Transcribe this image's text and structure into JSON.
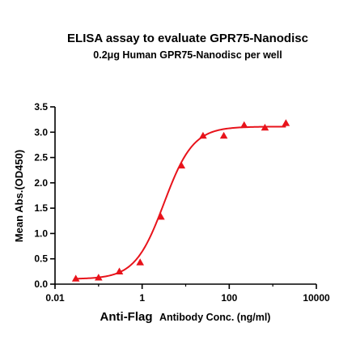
{
  "chart_data": {
    "type": "scatter",
    "title": "ELISA assay to evaluate GPR75-Nanodisc",
    "subtitle": "0.2μg Human GPR75-Nanodisc per well",
    "xlabel_main": "Anti-Flag",
    "xlabel_sub": "Antibody Conc. (ng/ml)",
    "ylabel": "Mean Abs.(OD450)",
    "x_scale": "log",
    "xlim": [
      0.01,
      10000
    ],
    "ylim": [
      0,
      3.5
    ],
    "x_ticks": [
      {
        "value": 0.01,
        "label": "0.01"
      },
      {
        "value": 1,
        "label": "1"
      },
      {
        "value": 100,
        "label": "100"
      },
      {
        "value": 10000,
        "label": "10000"
      }
    ],
    "y_ticks": [
      {
        "value": 0.0,
        "label": "0.0"
      },
      {
        "value": 0.5,
        "label": "0.5"
      },
      {
        "value": 1.0,
        "label": "1.0"
      },
      {
        "value": 1.5,
        "label": "1.5"
      },
      {
        "value": 2.0,
        "label": "2.0"
      },
      {
        "value": 2.5,
        "label": "2.5"
      },
      {
        "value": 3.0,
        "label": "3.0"
      },
      {
        "value": 3.5,
        "label": "3.5"
      }
    ],
    "series": [
      {
        "color": "#e8131b",
        "marker": "triangle",
        "points": [
          {
            "x": 0.03,
            "y": 0.11
          },
          {
            "x": 0.1,
            "y": 0.13
          },
          {
            "x": 0.3,
            "y": 0.25
          },
          {
            "x": 0.9,
            "y": 0.43
          },
          {
            "x": 2.7,
            "y": 1.33
          },
          {
            "x": 8.0,
            "y": 2.34
          },
          {
            "x": 25,
            "y": 2.93
          },
          {
            "x": 75,
            "y": 2.93
          },
          {
            "x": 220,
            "y": 3.14
          },
          {
            "x": 660,
            "y": 3.09
          },
          {
            "x": 2000,
            "y": 3.18
          }
        ],
        "fit": {
          "model": "4PL",
          "bottom": 0.1,
          "top": 3.11,
          "ec50": 3.2,
          "hill": 1.3
        }
      }
    ]
  }
}
